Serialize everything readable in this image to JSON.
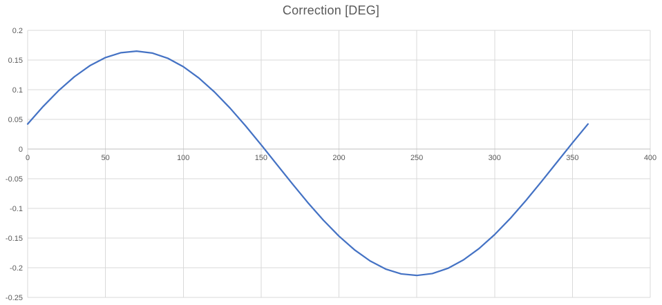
{
  "chart_data": {
    "type": "line",
    "title": "Correction [DEG]",
    "xlabel": "",
    "ylabel": "",
    "xlim": [
      0,
      400
    ],
    "ylim": [
      -0.25,
      0.2
    ],
    "grid": true,
    "legend_position": "none",
    "x_ticks": {
      "values": [
        0,
        50,
        100,
        150,
        200,
        250,
        300,
        350,
        400
      ],
      "labels": [
        "0",
        "50",
        "100",
        "150",
        "200",
        "250",
        "300",
        "350",
        "400"
      ]
    },
    "y_ticks": {
      "values": [
        0.2,
        0.15,
        0.1,
        0.05,
        0,
        -0.05,
        -0.1,
        -0.15,
        -0.2,
        -0.25
      ],
      "labels": [
        "0.2",
        "0.15",
        "0.1",
        "0.05",
        "0",
        "-0.05",
        "-0.1",
        "-0.15",
        "-0.2",
        "-0.25"
      ]
    },
    "series": [
      {
        "name": "Correction",
        "x": [
          0,
          10,
          20,
          30,
          40,
          50,
          60,
          70,
          80,
          90,
          100,
          110,
          120,
          130,
          140,
          150,
          160,
          170,
          180,
          190,
          200,
          210,
          220,
          230,
          240,
          250,
          260,
          270,
          280,
          290,
          300,
          310,
          320,
          330,
          340,
          350,
          360
        ],
        "y": [
          0.0422,
          0.0719,
          0.0987,
          0.1218,
          0.1405,
          0.1542,
          0.1624,
          0.165,
          0.1618,
          0.153,
          0.1388,
          0.1197,
          0.0962,
          0.0691,
          0.0391,
          0.0072,
          -0.0256,
          -0.0584,
          -0.0902,
          -0.1199,
          -0.1467,
          -0.1698,
          -0.1885,
          -0.2022,
          -0.2104,
          -0.213,
          -0.2098,
          -0.201,
          -0.1868,
          -0.1677,
          -0.1442,
          -0.1171,
          -0.0871,
          -0.0552,
          -0.0224,
          0.0104,
          0.0422
        ]
      }
    ],
    "colors": {
      "line": "#4472C4",
      "gridline": "#D9D9D9",
      "axis": "#BFBFBF",
      "tick_text": "#595959",
      "title_text": "#595959",
      "background": "#FFFFFF"
    }
  }
}
